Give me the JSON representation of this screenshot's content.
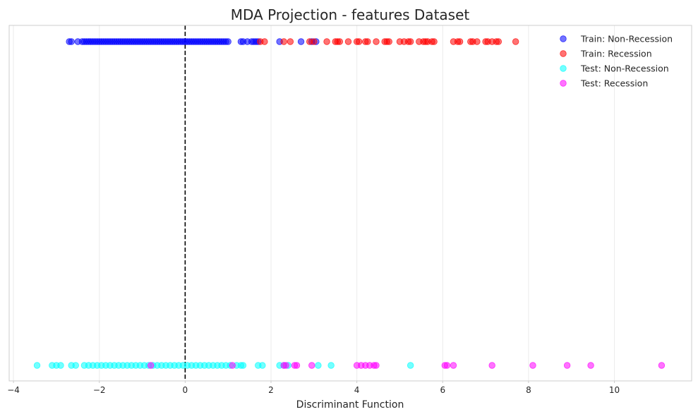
{
  "chart_data": {
    "type": "scatter",
    "title": "MDA Projection - features Dataset",
    "xlabel": "Discriminant Function",
    "ylabel": "",
    "xlim": [
      -4.1,
      11.8
    ],
    "xticks": [
      -4,
      -2,
      0,
      2,
      4,
      6,
      8,
      10
    ],
    "xtick_labels": [
      "−4",
      "−2",
      "0",
      "2",
      "4",
      "6",
      "8",
      "10"
    ],
    "grid": true,
    "legend_position": "top-right",
    "threshold_line": {
      "x": 0,
      "style": "dashed",
      "color": "#000000"
    },
    "series": [
      {
        "name": "Train: Non-Recession",
        "color": "#0000ff",
        "row": "train",
        "x": [
          -2.7,
          -2.65,
          -2.5,
          -2.4,
          -2.35,
          -2.3,
          -2.25,
          -2.2,
          -2.15,
          -2.1,
          -2.05,
          -2.0,
          -1.95,
          -1.9,
          -1.85,
          -1.8,
          -1.75,
          -1.7,
          -1.65,
          -1.6,
          -1.55,
          -1.5,
          -1.45,
          -1.4,
          -1.35,
          -1.3,
          -1.25,
          -1.2,
          -1.15,
          -1.1,
          -1.05,
          -1.0,
          -0.95,
          -0.9,
          -0.85,
          -0.8,
          -0.75,
          -0.7,
          -0.65,
          -0.6,
          -0.55,
          -0.5,
          -0.45,
          -0.4,
          -0.35,
          -0.3,
          -0.25,
          -0.2,
          -0.15,
          -0.1,
          -0.05,
          0.0,
          0.05,
          0.1,
          0.15,
          0.2,
          0.25,
          0.3,
          0.35,
          0.4,
          0.45,
          0.5,
          0.55,
          0.6,
          0.65,
          0.7,
          0.75,
          0.8,
          0.85,
          0.9,
          0.95,
          1.0,
          1.3,
          1.35,
          1.45,
          1.55,
          1.6,
          1.65,
          1.7,
          2.2,
          2.7,
          2.95,
          3.05
        ]
      },
      {
        "name": "Train: Recession",
        "color": "#ff0000",
        "row": "train",
        "x": [
          1.75,
          1.85,
          2.3,
          2.45,
          2.9,
          3.0,
          3.3,
          3.5,
          3.55,
          3.6,
          3.8,
          4.0,
          4.05,
          4.2,
          4.25,
          4.45,
          4.65,
          4.7,
          4.75,
          5.0,
          5.1,
          5.2,
          5.25,
          5.45,
          5.55,
          5.6,
          5.65,
          5.75,
          5.8,
          6.25,
          6.35,
          6.4,
          6.65,
          6.7,
          6.8,
          7.0,
          7.05,
          7.15,
          7.25,
          7.3,
          7.7
        ]
      },
      {
        "name": "Test: Non-Recession",
        "color": "#00ffff",
        "row": "test",
        "x": [
          -3.45,
          -3.1,
          -3.0,
          -2.9,
          -2.65,
          -2.55,
          -2.35,
          -2.25,
          -2.15,
          -2.05,
          -1.95,
          -1.85,
          -1.75,
          -1.65,
          -1.55,
          -1.45,
          -1.35,
          -1.25,
          -1.15,
          -1.05,
          -0.95,
          -0.85,
          -0.75,
          -0.65,
          -0.55,
          -0.45,
          -0.35,
          -0.25,
          -0.15,
          -0.05,
          0.05,
          0.15,
          0.25,
          0.35,
          0.45,
          0.55,
          0.65,
          0.75,
          0.85,
          0.95,
          1.05,
          1.2,
          1.3,
          1.35,
          1.7,
          1.8,
          2.2,
          2.3,
          2.4,
          3.1,
          3.4,
          5.25
        ]
      },
      {
        "name": "Test: Recession",
        "color": "#ff00ff",
        "row": "test",
        "x": [
          -0.8,
          1.1,
          2.3,
          2.35,
          2.55,
          2.6,
          2.95,
          4.0,
          4.1,
          4.2,
          4.3,
          4.4,
          4.45,
          6.05,
          6.1,
          6.25,
          7.15,
          8.1,
          8.9,
          9.45,
          11.1
        ]
      }
    ]
  }
}
